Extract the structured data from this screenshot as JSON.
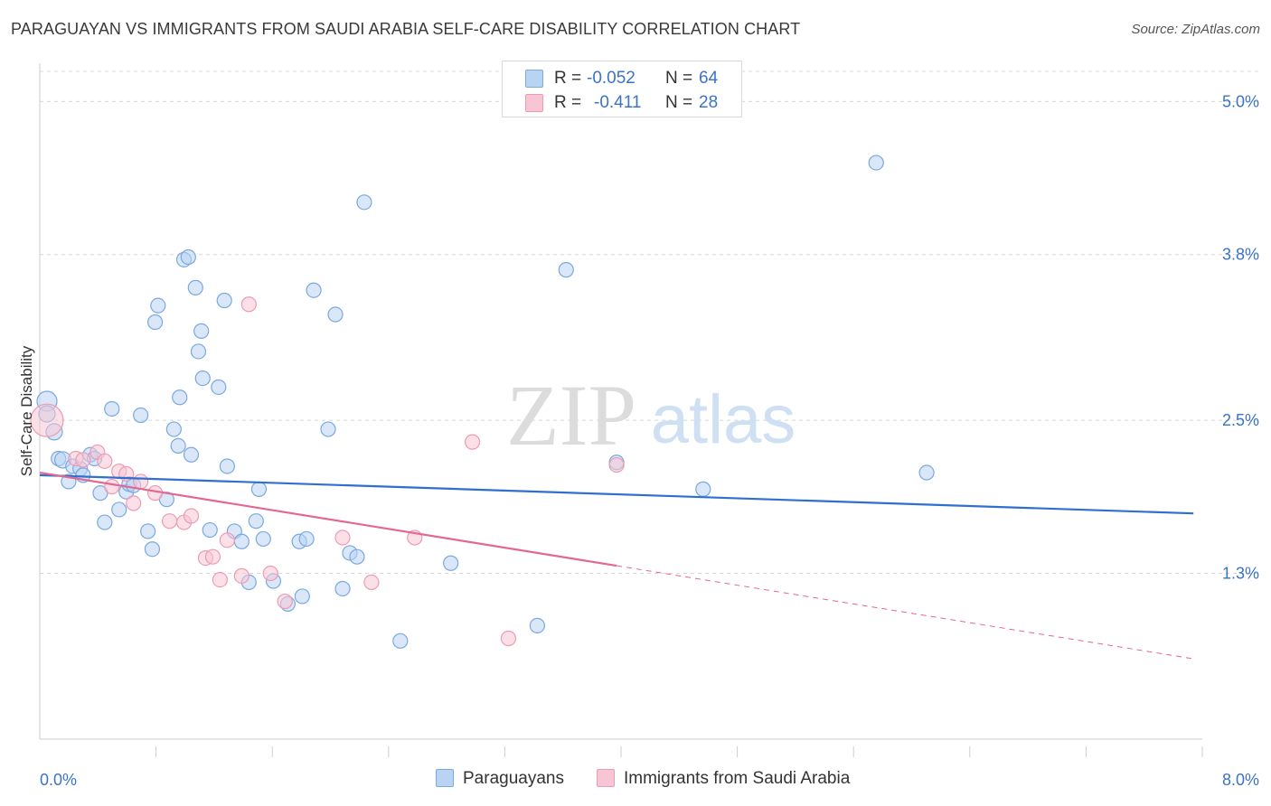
{
  "title": "PARAGUAYAN VS IMMIGRANTS FROM SAUDI ARABIA SELF-CARE DISABILITY CORRELATION CHART",
  "source": "Source: ZipAtlas.com",
  "watermark": {
    "zip": "ZIP",
    "atlas": "atlas"
  },
  "legend": {
    "rows": [
      {
        "r_label": "R =",
        "r_value": "-0.052",
        "n_label": "N =",
        "n_value": "64"
      },
      {
        "r_label": "R =",
        "r_value": "-0.411",
        "n_label": "N =",
        "n_value": "28"
      }
    ],
    "bottom": [
      "Paraguayans",
      "Immigrants from Saudi Arabia"
    ]
  },
  "colors": {
    "blue_fill": "#b9d3f3",
    "blue_stroke": "#7aa8e0",
    "blue_line": "#2f6fd0",
    "pink_fill": "#f7c6d5",
    "pink_stroke": "#ee9ab4",
    "pink_line": "#e4678f",
    "tick_label": "#3b73c8",
    "grid": "#d8d8d8"
  },
  "chart_data": {
    "type": "scatter",
    "title": "PARAGUAYAN VS IMMIGRANTS FROM SAUDI ARABIA SELF-CARE DISABILITY CORRELATION CHART",
    "xlabel": "",
    "ylabel": "Self-Care Disability",
    "xlim": [
      0,
      8.4
    ],
    "ylim": [
      0,
      5.3
    ],
    "x_tick_labels": [
      "0.0%",
      "8.0%"
    ],
    "y_ticks": [
      1.3,
      2.5,
      3.8,
      5.0
    ],
    "y_tick_labels": [
      "1.3%",
      "2.5%",
      "3.8%",
      "5.0%"
    ],
    "series": [
      {
        "name": "Paraguayans",
        "color": "blue",
        "r": -0.052,
        "n": 64,
        "trend": {
          "x0": 0.0,
          "y0": 2.07,
          "x1": 8.0,
          "y1": 1.77,
          "dashed_from": null
        },
        "points": [
          [
            0.05,
            2.65,
            11
          ],
          [
            0.05,
            2.55,
            9
          ],
          [
            0.1,
            2.41,
            9
          ],
          [
            0.13,
            2.2,
            8
          ],
          [
            0.16,
            2.19,
            9
          ],
          [
            0.2,
            2.02,
            8
          ],
          [
            0.23,
            2.14,
            8
          ],
          [
            0.28,
            2.12,
            8
          ],
          [
            0.3,
            2.07,
            8
          ],
          [
            0.35,
            2.23,
            8
          ],
          [
            0.38,
            2.2,
            8
          ],
          [
            0.42,
            1.93,
            8
          ],
          [
            0.45,
            1.7,
            8
          ],
          [
            0.5,
            2.59,
            8
          ],
          [
            0.55,
            1.8,
            8
          ],
          [
            0.6,
            1.94,
            8
          ],
          [
            0.62,
            2.0,
            8
          ],
          [
            0.65,
            1.99,
            8
          ],
          [
            0.7,
            2.54,
            8
          ],
          [
            0.75,
            1.63,
            8
          ],
          [
            0.78,
            1.49,
            8
          ],
          [
            0.8,
            3.27,
            8
          ],
          [
            0.82,
            3.4,
            8
          ],
          [
            0.88,
            1.88,
            8
          ],
          [
            0.93,
            2.43,
            8
          ],
          [
            0.96,
            2.3,
            8
          ],
          [
            0.97,
            2.68,
            8
          ],
          [
            1.0,
            3.76,
            8
          ],
          [
            1.03,
            3.78,
            8
          ],
          [
            1.05,
            2.23,
            8
          ],
          [
            1.08,
            3.54,
            8
          ],
          [
            1.1,
            3.04,
            8
          ],
          [
            1.12,
            3.2,
            8
          ],
          [
            1.13,
            2.83,
            8
          ],
          [
            1.18,
            1.64,
            8
          ],
          [
            1.24,
            2.76,
            8
          ],
          [
            1.28,
            3.44,
            8
          ],
          [
            1.3,
            2.14,
            8
          ],
          [
            1.35,
            1.63,
            8
          ],
          [
            1.4,
            1.55,
            8
          ],
          [
            1.45,
            1.23,
            8
          ],
          [
            1.5,
            1.71,
            8
          ],
          [
            1.52,
            1.96,
            8
          ],
          [
            1.55,
            1.57,
            8
          ],
          [
            1.62,
            1.24,
            8
          ],
          [
            1.72,
            1.06,
            8
          ],
          [
            1.8,
            1.55,
            8
          ],
          [
            1.82,
            1.12,
            8
          ],
          [
            1.85,
            1.57,
            8
          ],
          [
            1.9,
            3.52,
            8
          ],
          [
            2.0,
            2.43,
            8
          ],
          [
            2.05,
            3.33,
            8
          ],
          [
            2.1,
            1.18,
            8
          ],
          [
            2.15,
            1.46,
            8
          ],
          [
            2.2,
            1.43,
            8
          ],
          [
            2.25,
            4.21,
            8
          ],
          [
            2.5,
            0.77,
            8
          ],
          [
            2.85,
            1.38,
            8
          ],
          [
            3.45,
            0.89,
            8
          ],
          [
            3.65,
            3.68,
            8
          ],
          [
            4.0,
            2.17,
            8
          ],
          [
            4.6,
            1.96,
            8
          ],
          [
            5.8,
            4.52,
            8
          ],
          [
            6.15,
            2.09,
            8
          ]
        ]
      },
      {
        "name": "Immigrants from Saudi Arabia",
        "color": "pink",
        "r": -0.411,
        "n": 28,
        "trend": {
          "x0": 0.0,
          "y0": 2.09,
          "x1": 8.0,
          "y1": 0.63,
          "dashed_from": 4.0
        },
        "points": [
          [
            0.05,
            2.5,
            18
          ],
          [
            0.25,
            2.2,
            8
          ],
          [
            0.3,
            2.19,
            8
          ],
          [
            0.4,
            2.25,
            8
          ],
          [
            0.45,
            2.18,
            8
          ],
          [
            0.5,
            1.98,
            8
          ],
          [
            0.55,
            2.1,
            8
          ],
          [
            0.6,
            2.08,
            8
          ],
          [
            0.65,
            1.85,
            8
          ],
          [
            0.7,
            2.02,
            8
          ],
          [
            0.8,
            1.93,
            8
          ],
          [
            0.9,
            1.71,
            8
          ],
          [
            1.0,
            1.7,
            8
          ],
          [
            1.05,
            1.75,
            8
          ],
          [
            1.15,
            1.42,
            8
          ],
          [
            1.2,
            1.43,
            8
          ],
          [
            1.25,
            1.25,
            8
          ],
          [
            1.3,
            1.56,
            8
          ],
          [
            1.4,
            1.28,
            8
          ],
          [
            1.45,
            3.41,
            8
          ],
          [
            1.6,
            1.3,
            8
          ],
          [
            1.7,
            1.08,
            8
          ],
          [
            2.1,
            1.58,
            8
          ],
          [
            2.3,
            1.23,
            8
          ],
          [
            2.6,
            1.58,
            8
          ],
          [
            3.0,
            2.33,
            8
          ],
          [
            3.25,
            0.79,
            8
          ],
          [
            4.0,
            2.15,
            8
          ]
        ]
      }
    ]
  }
}
